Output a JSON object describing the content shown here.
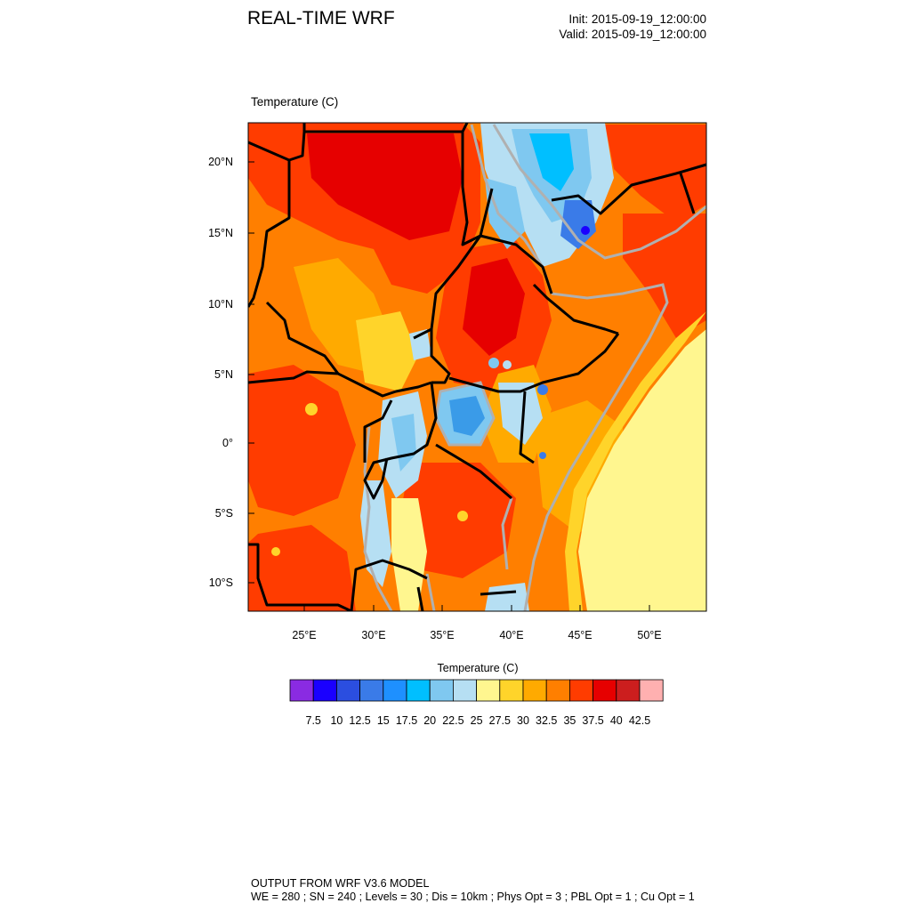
{
  "header": {
    "title": "REAL-TIME WRF",
    "init": "Init: 2015-09-19_12:00:00",
    "valid": "Valid: 2015-09-19_12:00:00"
  },
  "field": {
    "name": "Temperature",
    "units": "(C)",
    "label": "Temperature   (C)"
  },
  "axes": {
    "lat_labels": [
      "20°N",
      "15°N",
      "10°N",
      "5°N",
      "0°",
      "5°S",
      "10°S"
    ],
    "lon_labels": [
      "25°E",
      "30°E",
      "35°E",
      "40°E",
      "45°E",
      "50°E"
    ]
  },
  "legend": {
    "title": "Temperature  (C)",
    "levels": [
      "7.5",
      "10",
      "12.5",
      "15",
      "17.5",
      "20",
      "22.5",
      "25",
      "27.5",
      "30",
      "32.5",
      "35",
      "37.5",
      "40",
      "42.5"
    ],
    "colors": [
      "#8a2be2",
      "#1a00ff",
      "#2b4ee0",
      "#3a7be8",
      "#1e90ff",
      "#00bfff",
      "#7fc8f0",
      "#b6dff3",
      "#fff68f",
      "#ffd42a",
      "#ffaa00",
      "#ff7f00",
      "#ff3c00",
      "#e60000",
      "#cc1e1e",
      "#ffb0b0"
    ]
  },
  "footer": {
    "line1": "OUTPUT FROM WRF V3.6 MODEL",
    "line2": "WE = 280 ; SN = 240 ; Levels = 30 ; Dis = 10km ; Phys Opt = 3 ; PBL Opt = 1 ; Cu Opt = 1"
  }
}
